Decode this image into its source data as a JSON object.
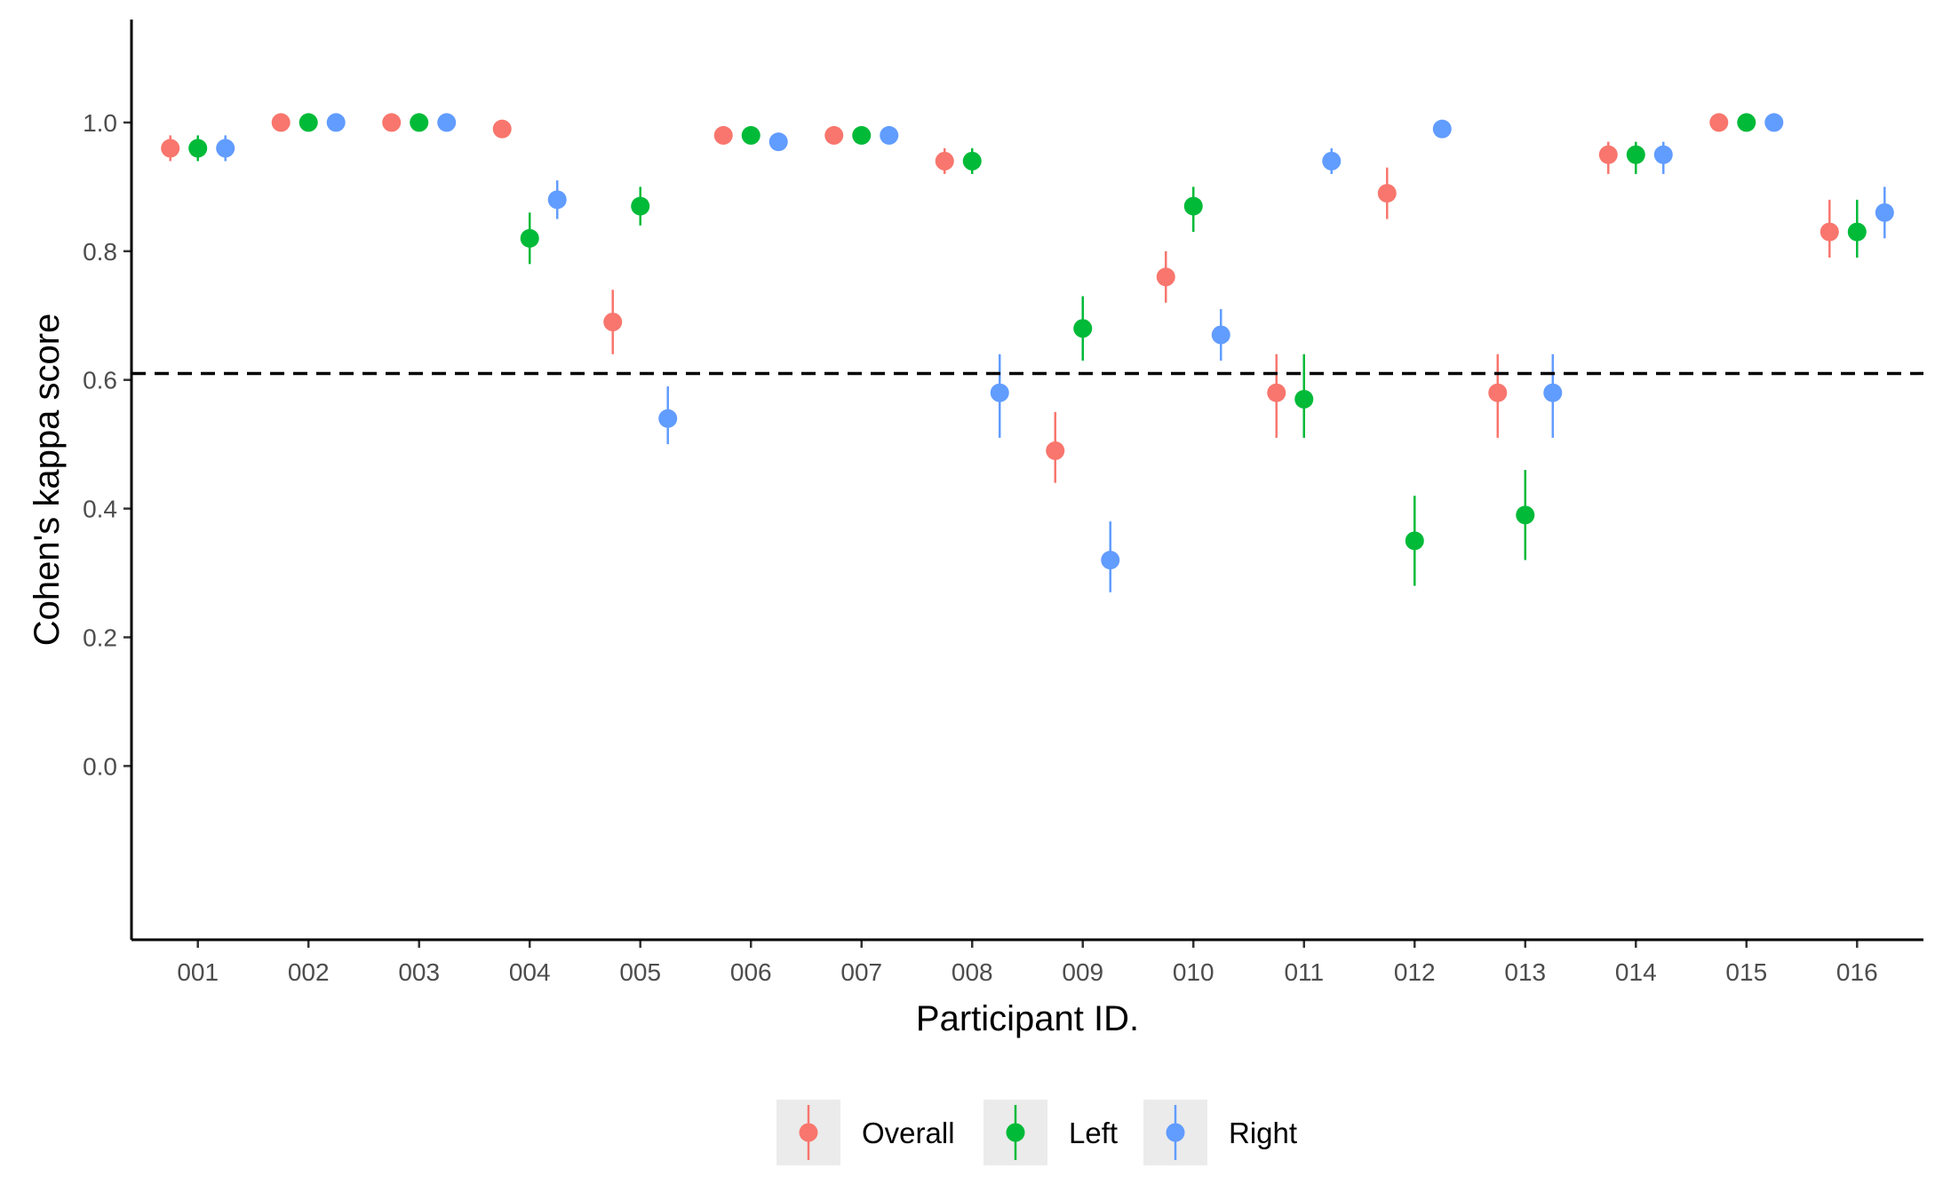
{
  "chart_data": {
    "type": "scatter",
    "xlabel": "Participant ID.",
    "ylabel": "Cohen's kappa score",
    "ylim": [
      -0.27,
      1.16
    ],
    "yticks": [
      0.0,
      0.2,
      0.4,
      0.6,
      0.8,
      1.0
    ],
    "ytick_labels": [
      "0.0",
      "0.2",
      "0.4",
      "0.6",
      "0.8",
      "1.0"
    ],
    "categories": [
      "001",
      "002",
      "003",
      "004",
      "005",
      "006",
      "007",
      "008",
      "009",
      "010",
      "011",
      "012",
      "013",
      "014",
      "015",
      "016"
    ],
    "reference_line": {
      "y": 0.61,
      "style": "dashed",
      "color": "#000000"
    },
    "legend_position": "bottom",
    "grid": false,
    "series": [
      {
        "name": "Overall",
        "color": "#F8766D",
        "values": [
          0.96,
          1.0,
          1.0,
          0.99,
          0.69,
          0.98,
          0.98,
          0.94,
          0.49,
          0.76,
          0.58,
          0.89,
          0.58,
          0.95,
          1.0,
          0.83
        ],
        "lower": [
          0.94,
          1.0,
          1.0,
          0.99,
          0.64,
          0.98,
          0.98,
          0.92,
          0.44,
          0.72,
          0.51,
          0.85,
          0.51,
          0.92,
          1.0,
          0.79
        ],
        "upper": [
          0.98,
          1.0,
          1.0,
          0.99,
          0.74,
          0.98,
          0.98,
          0.96,
          0.55,
          0.8,
          0.64,
          0.93,
          0.64,
          0.97,
          1.0,
          0.88
        ]
      },
      {
        "name": "Left",
        "color": "#00BA38",
        "values": [
          0.96,
          1.0,
          1.0,
          0.82,
          0.87,
          0.98,
          0.98,
          0.94,
          0.68,
          0.87,
          0.57,
          0.35,
          0.39,
          0.95,
          1.0,
          0.83
        ],
        "lower": [
          0.94,
          1.0,
          1.0,
          0.78,
          0.84,
          0.98,
          0.98,
          0.92,
          0.63,
          0.83,
          0.51,
          0.28,
          0.32,
          0.92,
          1.0,
          0.79
        ],
        "upper": [
          0.98,
          1.0,
          1.0,
          0.86,
          0.9,
          0.98,
          0.98,
          0.96,
          0.73,
          0.9,
          0.64,
          0.42,
          0.46,
          0.97,
          1.0,
          0.88
        ]
      },
      {
        "name": "Right",
        "color": "#619CFF",
        "values": [
          0.96,
          1.0,
          1.0,
          0.88,
          0.54,
          0.97,
          0.98,
          0.58,
          0.32,
          0.67,
          0.94,
          0.99,
          0.58,
          0.95,
          1.0,
          0.86
        ],
        "lower": [
          0.94,
          1.0,
          1.0,
          0.85,
          0.5,
          0.96,
          0.98,
          0.51,
          0.27,
          0.63,
          0.92,
          0.99,
          0.51,
          0.92,
          1.0,
          0.82
        ],
        "upper": [
          0.98,
          1.0,
          1.0,
          0.91,
          0.59,
          0.98,
          0.98,
          0.64,
          0.38,
          0.71,
          0.96,
          0.99,
          0.64,
          0.97,
          1.0,
          0.9
        ]
      }
    ]
  }
}
